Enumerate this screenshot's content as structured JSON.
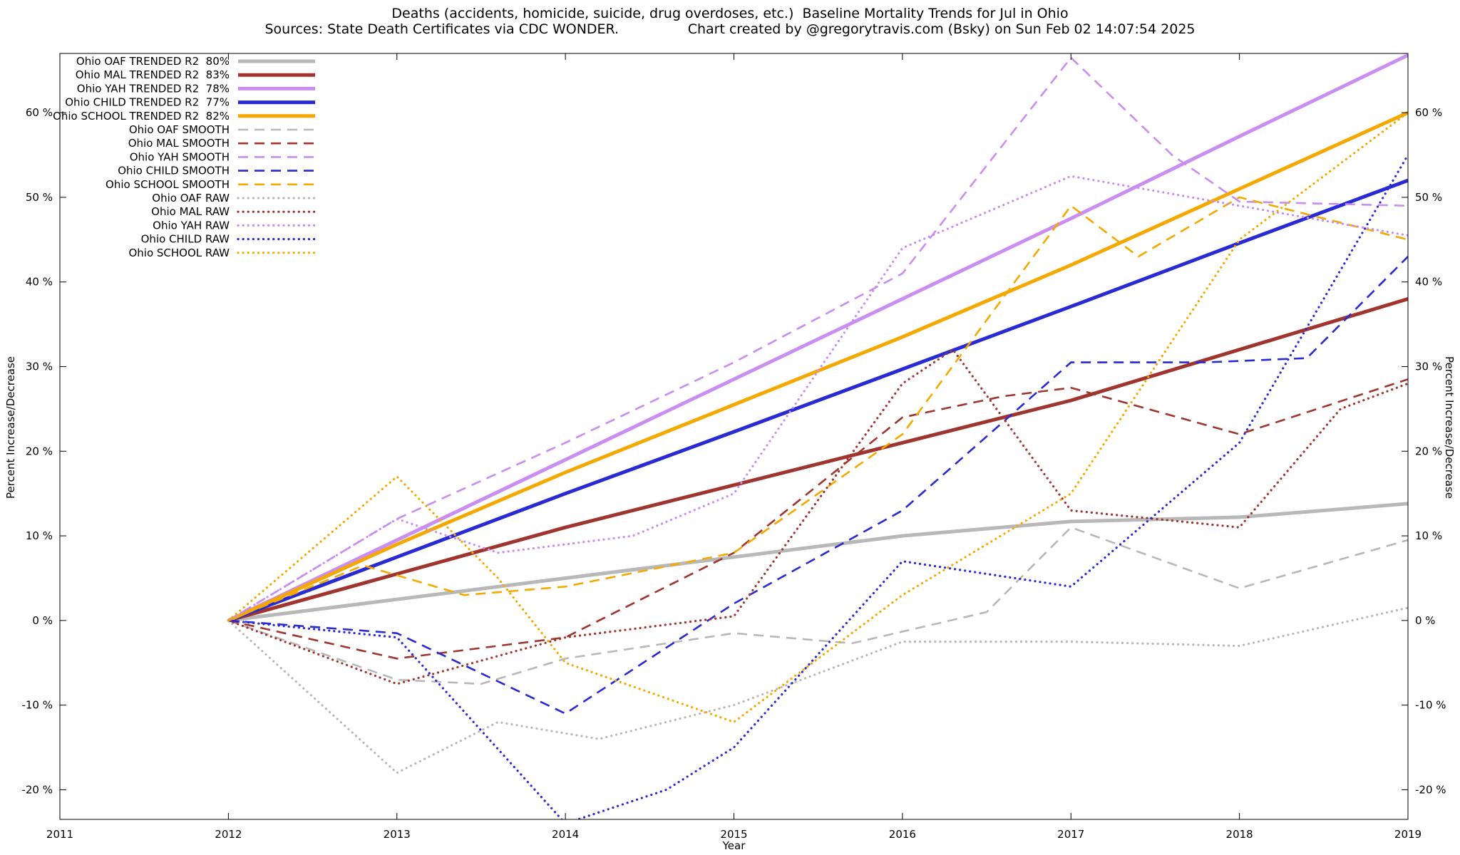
{
  "title": {
    "line1": "Deaths (accidents, homicide, suicide, drug overdoses, etc.)  Baseline Mortality Trends for Jul in Ohio",
    "line2": "Sources: State Death Certificates via CDC WONDER.                Chart created by @gregorytravis.com (Bsky) on Sun Feb 02 14:07:54 2025"
  },
  "chart_data": {
    "type": "line",
    "xlabel": "Year",
    "ylabel_left": "Percent Increase/Decrease",
    "ylabel_right": "Percent Increase/Decrease",
    "xlim": [
      2011,
      2019
    ],
    "ylim": [
      -23.5,
      67
    ],
    "grid": false,
    "legend_position": "top-left",
    "x_ticks": [
      2011,
      2012,
      2013,
      2014,
      2015,
      2016,
      2017,
      2018,
      2019
    ],
    "x_tick_labels": [
      "2011",
      "2012",
      "2013",
      "2014",
      "2015",
      "2016",
      "2017",
      "2018",
      "2019"
    ],
    "y_tick_values": [
      -20,
      -10,
      0,
      10,
      20,
      30,
      40,
      50,
      60
    ],
    "y_tick_labels": [
      "-20 %",
      "-10 %",
      "0 %",
      "10 %",
      "20 %",
      "30 %",
      "40 %",
      "50 %",
      "60 %"
    ],
    "series": [
      {
        "label": "Ohio OAF TRENDED R2  80%",
        "group": "OAF",
        "kind": "TRENDED",
        "r2": "80%",
        "color": "#b8b8b8",
        "style": "solid",
        "x": [
          2012,
          2013,
          2014,
          2015,
          2016,
          2017,
          2018,
          2019
        ],
        "y": [
          0,
          2.5,
          5,
          7.5,
          10,
          11.7,
          12.2,
          13.8
        ]
      },
      {
        "label": "Ohio MAL TRENDED R2  83%",
        "group": "MAL",
        "kind": "TRENDED",
        "r2": "83%",
        "color": "#a0352f",
        "style": "solid",
        "x": [
          2012,
          2013,
          2014,
          2015,
          2016,
          2017,
          2018,
          2019
        ],
        "y": [
          0,
          5.5,
          11,
          16,
          21,
          26,
          32,
          38
        ]
      },
      {
        "label": "Ohio YAH TRENDED R2  78%",
        "group": "YAH",
        "kind": "TRENDED",
        "r2": "78%",
        "color": "#c98ef0",
        "style": "solid",
        "x": [
          2012,
          2013,
          2014,
          2015,
          2016,
          2017,
          2018,
          2019
        ],
        "y": [
          0,
          9.5,
          19,
          28.5,
          38,
          47.5,
          57.2,
          66.8
        ]
      },
      {
        "label": "Ohio CHILD TRENDED R2  77%",
        "group": "CHILD",
        "kind": "TRENDED",
        "r2": "77%",
        "color": "#2a2ad4",
        "style": "solid",
        "x": [
          2012,
          2013,
          2014,
          2015,
          2016,
          2017,
          2018,
          2019
        ],
        "y": [
          0,
          7.5,
          15,
          22.3,
          29.7,
          37.1,
          44.6,
          52
        ]
      },
      {
        "label": "Ohio SCHOOL TRENDED R2  82%",
        "group": "SCHOOL",
        "kind": "TRENDED",
        "r2": "82%",
        "color": "#f5a800",
        "style": "solid",
        "x": [
          2012,
          2013,
          2014,
          2015,
          2016,
          2017,
          2018,
          2019
        ],
        "y": [
          0,
          9,
          17.5,
          25.5,
          33.5,
          42,
          51,
          60
        ]
      },
      {
        "label": "Ohio OAF SMOOTH",
        "group": "OAF",
        "kind": "SMOOTH",
        "color": "#b8b8b8",
        "style": "dashed",
        "x": [
          2012,
          2013,
          2013.5,
          2014,
          2015,
          2015.7,
          2016.5,
          2017,
          2018,
          2019
        ],
        "y": [
          0,
          -7,
          -7.5,
          -4.5,
          -1.5,
          -2.7,
          1,
          11,
          3.8,
          9.5
        ]
      },
      {
        "label": "Ohio MAL SMOOTH",
        "group": "MAL",
        "kind": "SMOOTH",
        "color": "#a0352f",
        "style": "dashed",
        "x": [
          2012,
          2013,
          2014,
          2015,
          2016,
          2016.6,
          2017,
          2018,
          2019
        ],
        "y": [
          0,
          -4.5,
          -2,
          8,
          24,
          26.5,
          27.5,
          22,
          28.5
        ]
      },
      {
        "label": "Ohio YAH SMOOTH",
        "group": "YAH",
        "kind": "SMOOTH",
        "color": "#c98ef0",
        "style": "dashed",
        "x": [
          2012,
          2013,
          2014,
          2015,
          2016,
          2017,
          2017.6,
          2018,
          2019
        ],
        "y": [
          0,
          12,
          21,
          30.5,
          41,
          66.5,
          55,
          49.5,
          49
        ]
      },
      {
        "label": "Ohio CHILD SMOOTH",
        "group": "CHILD",
        "kind": "SMOOTH",
        "color": "#2a2ad4",
        "style": "dashed",
        "x": [
          2012,
          2013,
          2014,
          2015,
          2016,
          2017,
          2017.8,
          2018.4,
          2019
        ],
        "y": [
          0,
          -1.5,
          -11,
          2,
          13,
          30.5,
          30.5,
          31,
          43
        ]
      },
      {
        "label": "Ohio SCHOOL SMOOTH",
        "group": "SCHOOL",
        "kind": "SMOOTH",
        "color": "#f5a800",
        "style": "dashed",
        "x": [
          2012,
          2012.8,
          2013.4,
          2014,
          2015,
          2016,
          2017,
          2017.4,
          2018,
          2019
        ],
        "y": [
          0,
          6.5,
          3,
          4,
          8,
          22,
          49,
          43,
          50,
          45
        ]
      },
      {
        "label": "Ohio OAF RAW",
        "group": "OAF",
        "kind": "RAW",
        "color": "#b8b8b8",
        "style": "dotted",
        "x": [
          2012,
          2013,
          2013.6,
          2014.2,
          2015,
          2016,
          2017,
          2018,
          2019
        ],
        "y": [
          0,
          -18,
          -12,
          -14,
          -10,
          -2.5,
          -2.5,
          -3,
          1.5
        ]
      },
      {
        "label": "Ohio MAL RAW",
        "group": "MAL",
        "kind": "RAW",
        "color": "#a0352f",
        "style": "dotted",
        "x": [
          2012,
          2013,
          2014,
          2015,
          2016,
          2016.3,
          2017,
          2018,
          2018.6,
          2019
        ],
        "y": [
          0,
          -7.5,
          -2,
          0.5,
          28,
          32,
          13,
          11,
          25,
          28
        ]
      },
      {
        "label": "Ohio YAH RAW",
        "group": "YAH",
        "kind": "RAW",
        "color": "#c98ef0",
        "style": "dotted",
        "x": [
          2012,
          2013,
          2013.6,
          2014.4,
          2015,
          2016,
          2017,
          2018,
          2019
        ],
        "y": [
          0,
          12,
          8,
          10,
          15,
          44,
          52.5,
          49,
          45.5
        ]
      },
      {
        "label": "Ohio CHILD RAW",
        "group": "CHILD",
        "kind": "RAW",
        "color": "#2a2ad4",
        "style": "dotted",
        "x": [
          2012,
          2013,
          2014,
          2014.6,
          2015,
          2016,
          2017,
          2018,
          2019
        ],
        "y": [
          0,
          -2,
          -24,
          -20,
          -15,
          7,
          4,
          21,
          55
        ]
      },
      {
        "label": "Ohio SCHOOL RAW",
        "group": "SCHOOL",
        "kind": "RAW",
        "color": "#f5a800",
        "style": "dotted",
        "x": [
          2012,
          2013,
          2013.6,
          2014,
          2015,
          2016,
          2017,
          2018,
          2019
        ],
        "y": [
          0,
          17,
          5,
          -5,
          -12,
          3,
          15,
          45,
          60
        ]
      }
    ]
  }
}
